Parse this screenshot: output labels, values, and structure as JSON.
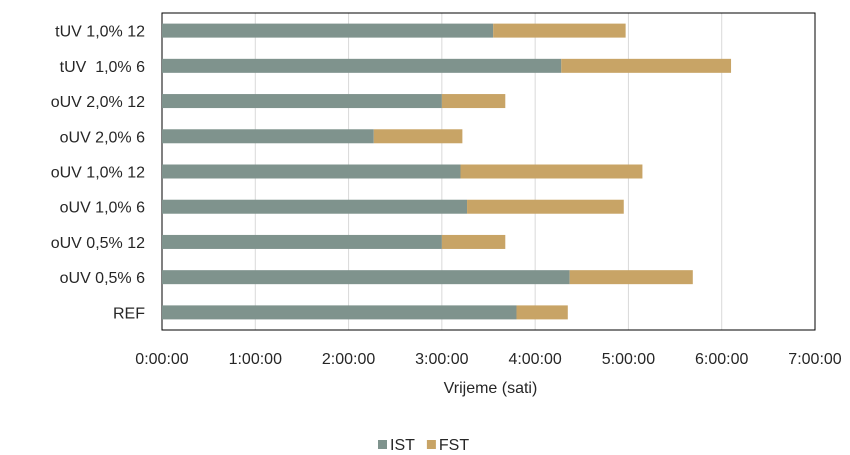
{
  "chart_data": {
    "type": "bar",
    "orientation": "horizontal",
    "stacked": true,
    "categories": [
      "tUV 1,0% 12",
      "tUV  1,0% 6",
      "oUV 2,0% 12",
      "oUV 2,0% 6",
      "oUV 1,0% 12",
      "oUV 1,0% 6",
      "oUV 0,5% 12",
      "oUV 0,5% 6",
      "REF"
    ],
    "series": [
      {
        "name": "IST",
        "values": [
          3.55,
          4.28,
          3.0,
          2.27,
          3.2,
          3.27,
          3.0,
          4.37,
          3.8
        ],
        "color": "#7f938d"
      },
      {
        "name": "FST",
        "values": [
          1.42,
          1.82,
          0.68,
          0.95,
          1.95,
          1.68,
          0.68,
          1.32,
          0.55
        ],
        "color": "#c8a466"
      }
    ],
    "xlabel": "Vrijeme (sati)",
    "ylabel": "",
    "xlim": [
      0,
      7
    ],
    "x_tick_labels": [
      "0:00:00",
      "1:00:00",
      "2:00:00",
      "3:00:00",
      "4:00:00",
      "5:00:00",
      "6:00:00",
      "7:00:00"
    ],
    "grid": true,
    "legend_position": "bottom"
  }
}
